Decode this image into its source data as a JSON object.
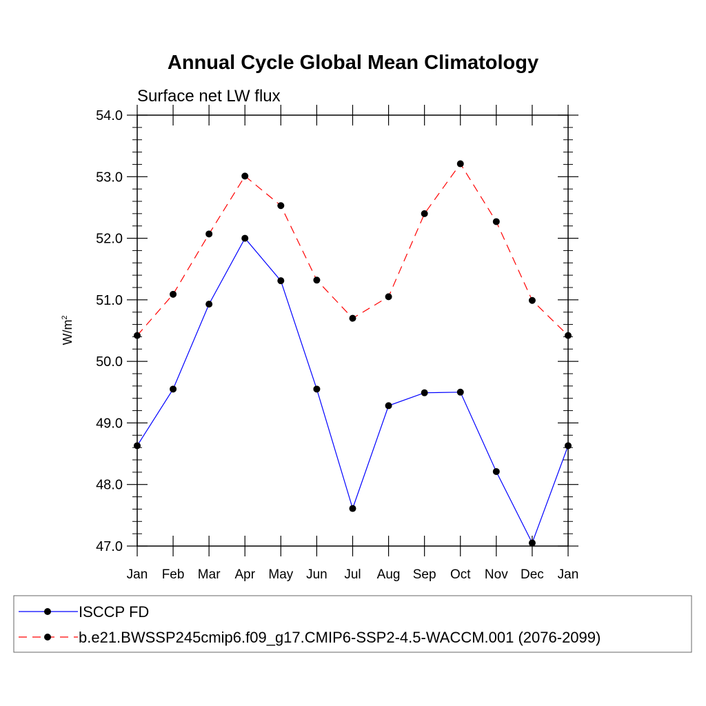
{
  "chart_data": {
    "type": "line",
    "title": "Annual Cycle Global Mean Climatology",
    "subtitle": "Surface net LW flux",
    "xlabel": "",
    "ylabel": "W/m",
    "ylabel_sup": "2",
    "categories": [
      "Jan",
      "Feb",
      "Mar",
      "Apr",
      "May",
      "Jun",
      "Jul",
      "Aug",
      "Sep",
      "Oct",
      "Nov",
      "Dec",
      "Jan"
    ],
    "ylim": [
      47.0,
      54.0
    ],
    "yticks": [
      "47.0",
      "48.0",
      "49.0",
      "50.0",
      "51.0",
      "52.0",
      "53.0",
      "54.0"
    ],
    "series": [
      {
        "name": "ISCCP FD",
        "color": "#0000ff",
        "dash": "solid",
        "values": [
          48.63,
          49.55,
          50.93,
          52.0,
          51.31,
          49.55,
          47.61,
          49.28,
          49.49,
          49.5,
          48.21,
          47.05,
          48.63
        ]
      },
      {
        "name": "b.e21.BWSSP245cmip6.f09_g17.CMIP6-SSP2-4.5-WACCM.001 (2076-2099)",
        "color": "#ff0000",
        "dash": "dashed",
        "values": [
          50.42,
          51.09,
          52.07,
          53.01,
          52.53,
          51.32,
          50.7,
          51.05,
          52.4,
          53.21,
          52.27,
          50.99,
          50.42
        ]
      }
    ],
    "grid": false,
    "legend_position": "bottom"
  }
}
